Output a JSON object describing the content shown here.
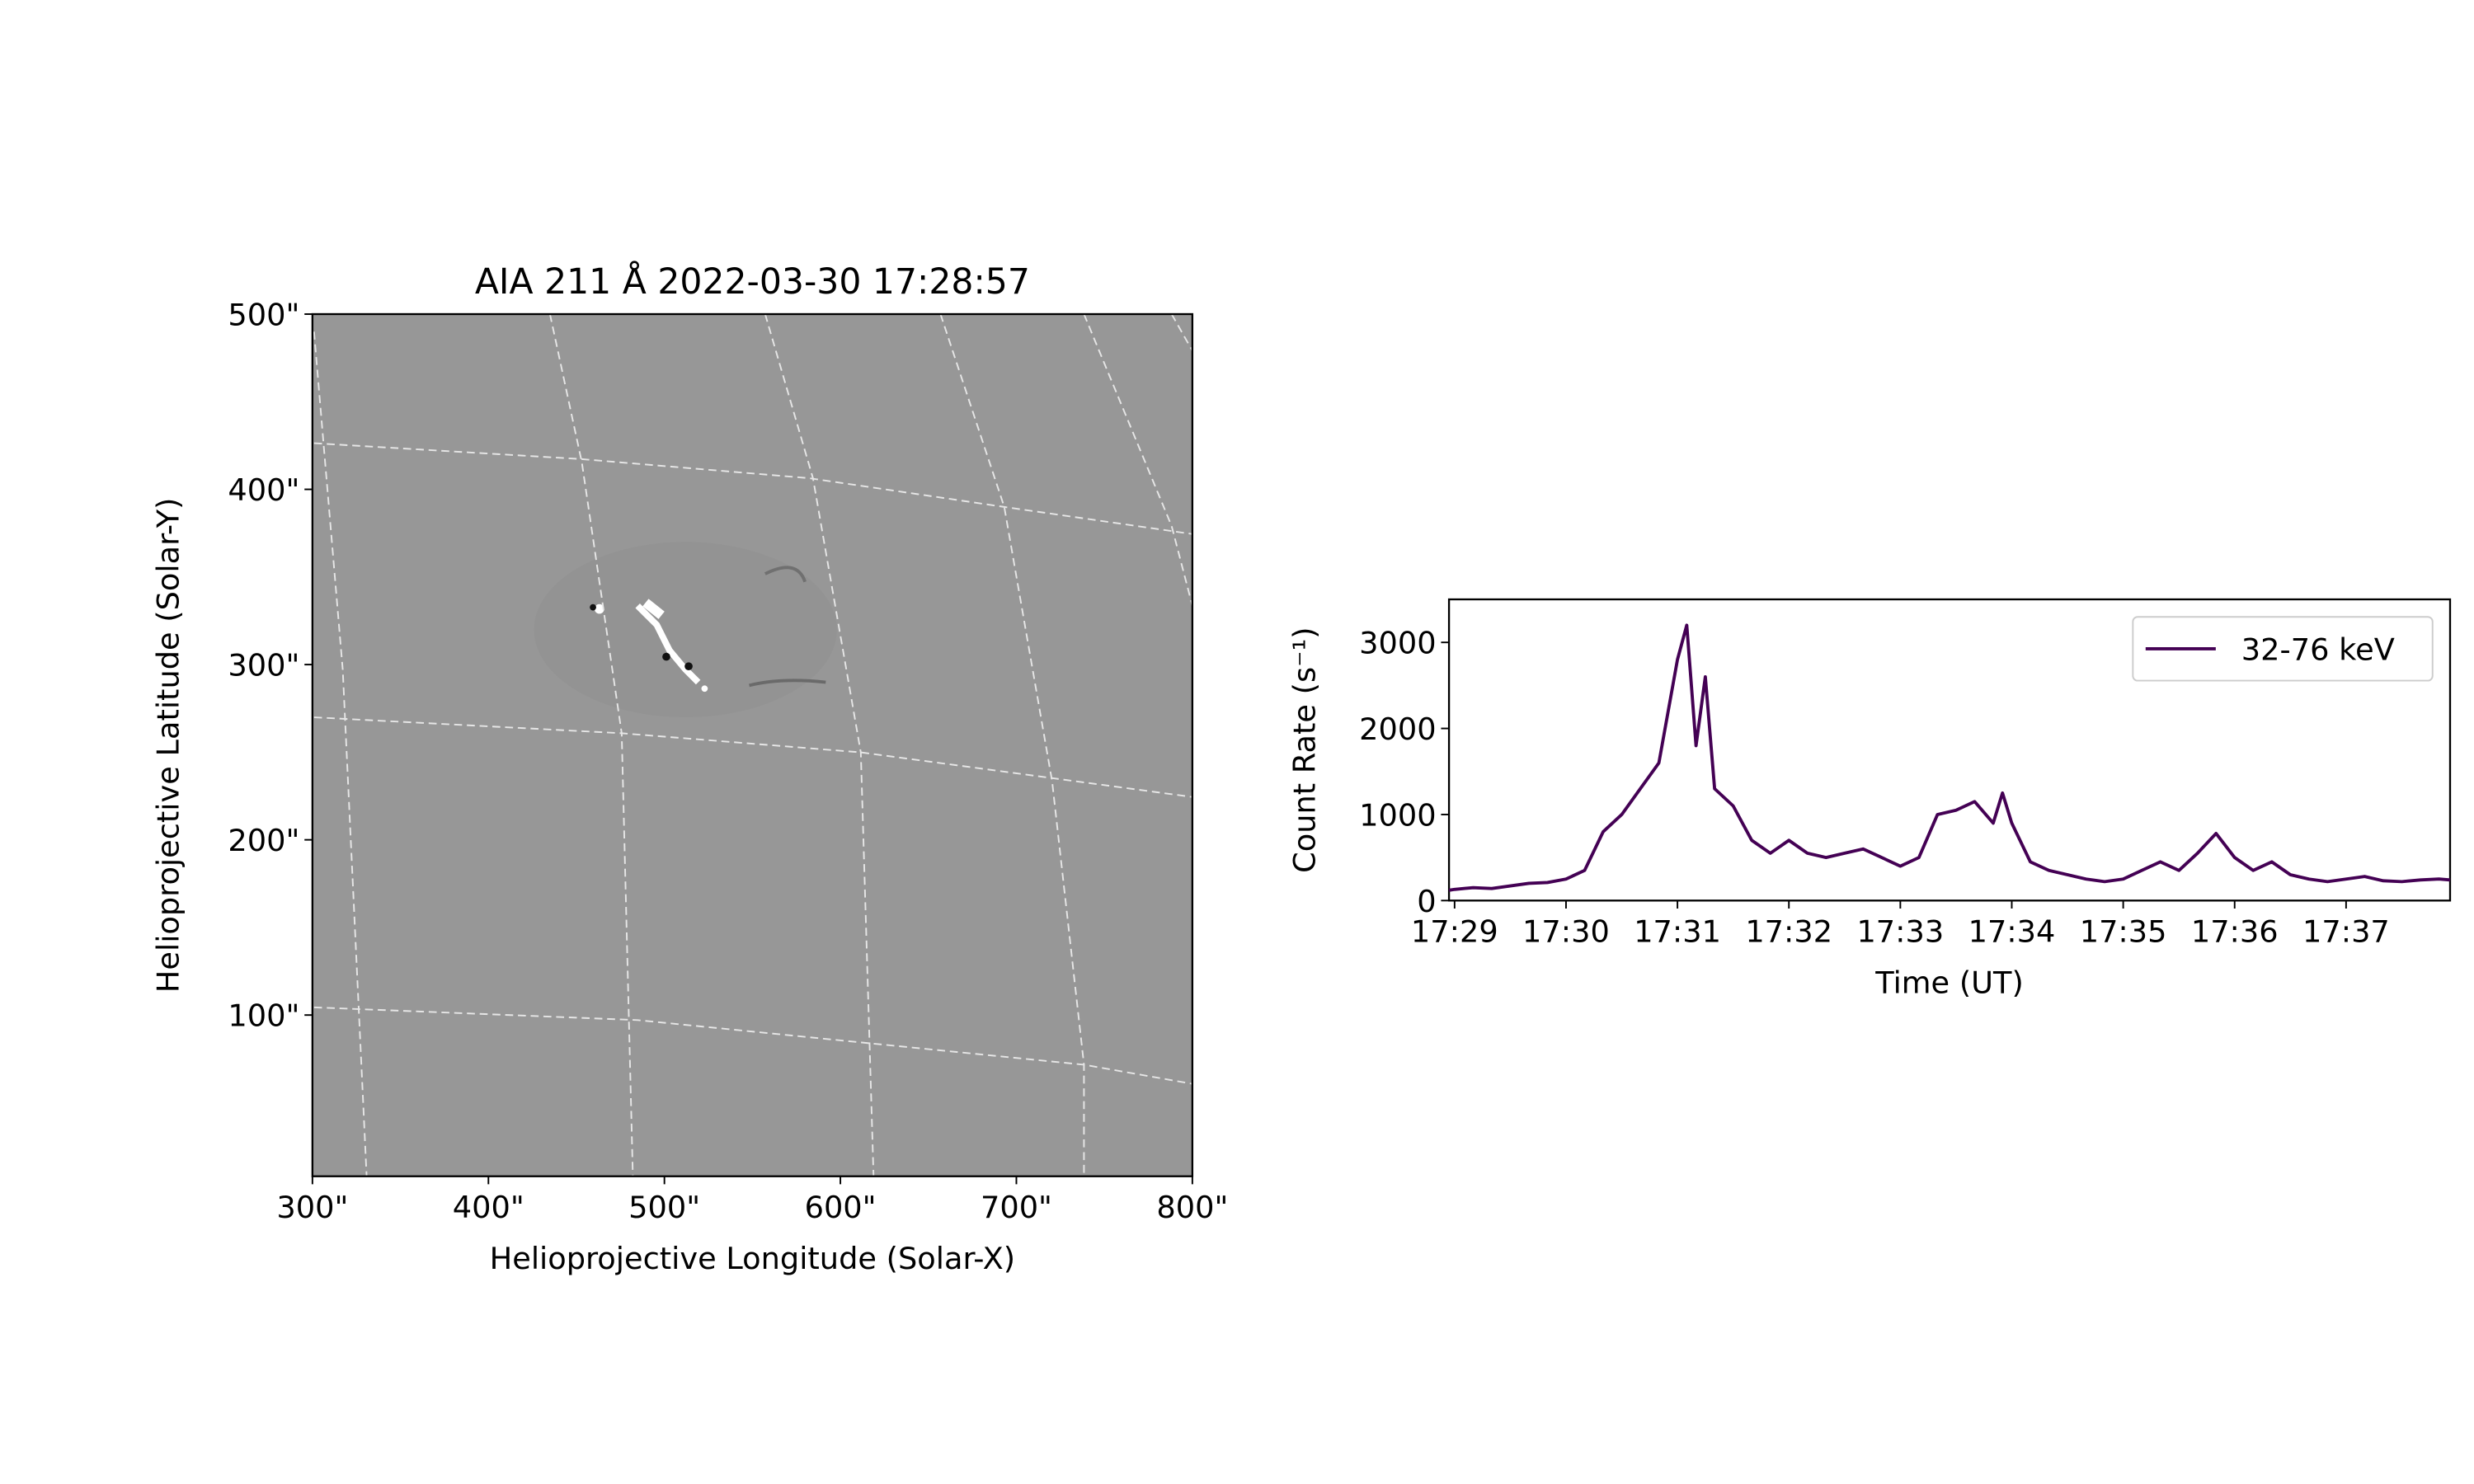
{
  "chart_data": [
    {
      "type": "image",
      "title": "AIA 211 Å 2022-03-30 17:28:57",
      "xlabel": "Helioprojective Longitude (Solar-X)",
      "ylabel": "Helioprojective Latitude (Solar-Y)",
      "xlim": [
        300,
        800
      ],
      "ylim": [
        8,
        500
      ],
      "xticks": [
        {
          "value": 300,
          "label": "300\""
        },
        {
          "value": 400,
          "label": "400\""
        },
        {
          "value": 500,
          "label": "500\""
        },
        {
          "value": 600,
          "label": "600\""
        },
        {
          "value": 700,
          "label": "700\""
        },
        {
          "value": 800,
          "label": "800\""
        }
      ],
      "yticks": [
        {
          "value": 100,
          "label": "100\""
        },
        {
          "value": 200,
          "label": "200\""
        },
        {
          "value": 300,
          "label": "300\""
        },
        {
          "value": 400,
          "label": "400\""
        },
        {
          "value": 500,
          "label": "500\""
        }
      ]
    },
    {
      "type": "line",
      "xlabel": "Time (UT)",
      "ylabel": "Count Rate (s⁻¹)",
      "x": [
        "17:28:57",
        "17:29:00",
        "17:29:10",
        "17:29:20",
        "17:29:30",
        "17:29:40",
        "17:29:50",
        "17:30:00",
        "17:30:10",
        "17:30:20",
        "17:30:30",
        "17:30:40",
        "17:30:50",
        "17:31:00",
        "17:31:05",
        "17:31:10",
        "17:31:15",
        "17:31:20",
        "17:31:30",
        "17:31:40",
        "17:31:50",
        "17:32:00",
        "17:32:10",
        "17:32:20",
        "17:32:30",
        "17:32:40",
        "17:32:50",
        "17:33:00",
        "17:33:10",
        "17:33:20",
        "17:33:30",
        "17:33:40",
        "17:33:50",
        "17:33:55",
        "17:34:00",
        "17:34:10",
        "17:34:20",
        "17:34:30",
        "17:34:40",
        "17:34:50",
        "17:35:00",
        "17:35:10",
        "17:35:20",
        "17:35:30",
        "17:35:40",
        "17:35:50",
        "17:36:00",
        "17:36:10",
        "17:36:20",
        "17:36:30",
        "17:36:40",
        "17:36:50",
        "17:37:00",
        "17:37:10",
        "17:37:20",
        "17:37:30",
        "17:37:40",
        "17:37:50",
        "17:37:56"
      ],
      "series": [
        {
          "name": "32-76 keV",
          "color": "#440154",
          "values": [
            120,
            130,
            150,
            140,
            170,
            200,
            210,
            250,
            350,
            800,
            1000,
            1300,
            1600,
            2800,
            3200,
            1800,
            2600,
            1300,
            1100,
            700,
            550,
            700,
            550,
            500,
            550,
            600,
            500,
            400,
            500,
            1000,
            1050,
            1150,
            900,
            1250,
            900,
            450,
            350,
            300,
            250,
            220,
            250,
            350,
            450,
            350,
            550,
            780,
            500,
            350,
            450,
            300,
            250,
            220,
            250,
            280,
            230,
            220,
            240,
            250,
            240
          ]
        }
      ],
      "xlim": [
        "17:28:57",
        "17:37:56"
      ],
      "ylim": [
        0,
        3500
      ],
      "xticks": [
        {
          "value": "17:29:00",
          "label": "17:29"
        },
        {
          "value": "17:30:00",
          "label": "17:30"
        },
        {
          "value": "17:31:00",
          "label": "17:31"
        },
        {
          "value": "17:32:00",
          "label": "17:32"
        },
        {
          "value": "17:33:00",
          "label": "17:33"
        },
        {
          "value": "17:34:00",
          "label": "17:34"
        },
        {
          "value": "17:35:00",
          "label": "17:35"
        },
        {
          "value": "17:36:00",
          "label": "17:36"
        },
        {
          "value": "17:37:00",
          "label": "17:37"
        }
      ],
      "yticks": [
        0,
        1000,
        2000,
        3000
      ],
      "legend": "upper right"
    }
  ]
}
